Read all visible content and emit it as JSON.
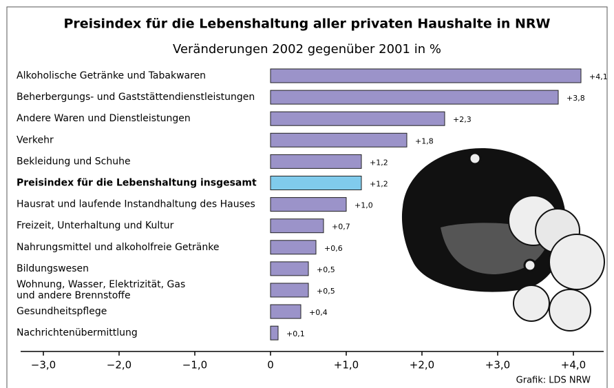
{
  "chart_data": {
    "type": "hbar",
    "title": "Preisindex für die Lebenshaltung aller privaten Haushalte in NRW",
    "subtitle": "Veränderungen 2002 gegenüber 2001 in %",
    "categories": [
      "Alkoholische Getränke und Tabakwaren",
      "Beherbergungs- und Gaststättendienstleistungen",
      "Andere Waren und Dienstleistungen",
      "Verkehr",
      "Bekleidung und Schuhe",
      "Preisindex für die Lebenshaltung insgesamt",
      "Hausrat und laufende Instandhaltung des Hauses",
      "Freizeit, Unterhaltung und Kultur",
      "Nahrungsmittel und alkoholfreie Getränke",
      "Bildungswesen",
      "Wohnung, Wasser, Elektrizität, Gas\nund andere Brennstoffe",
      "Gesundheitspflege",
      "Nachrichtenübermittlung"
    ],
    "values": [
      4.1,
      3.8,
      2.3,
      1.8,
      1.2,
      1.2,
      1.0,
      0.7,
      0.6,
      0.5,
      0.5,
      0.4,
      0.1
    ],
    "value_labels": [
      "+4,1",
      "+3,8",
      "+2,3",
      "+1,8",
      "+1,2",
      "+1,2",
      "+1,0",
      "+0,7",
      "+0,6",
      "+0,5",
      "+0,5",
      "+0,4",
      "+0,1"
    ],
    "color": "#9b93c9",
    "colors": [
      "#9b93c9",
      "#9b93c9",
      "#9b93c9",
      "#9b93c9",
      "#9b93c9",
      "#80cbec",
      "#9b93c9",
      "#9b93c9",
      "#9b93c9",
      "#9b93c9",
      "#9b93c9",
      "#9b93c9",
      "#9b93c9"
    ],
    "xlim": [
      -3.3,
      4.4
    ],
    "xticks": [
      {
        "value": -3,
        "label": "−3,0"
      },
      {
        "value": -2,
        "label": "−2,0"
      },
      {
        "value": -1,
        "label": "−1,0"
      },
      0,
      {
        "value": 1,
        "label": "+1,0"
      },
      {
        "value": 2,
        "label": "+2,0"
      },
      {
        "value": 3,
        "label": "+3,0"
      },
      {
        "value": 4,
        "label": "+4,0"
      }
    ],
    "source": "Grafik: LDS NRW"
  }
}
